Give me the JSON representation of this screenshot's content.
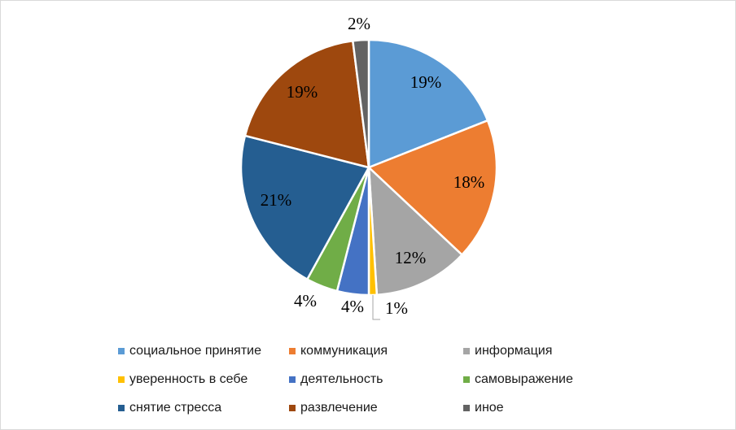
{
  "chart_data": {
    "type": "pie",
    "title": "",
    "legend_position": "bottom",
    "slices": [
      {
        "label": "социальное принятие",
        "value": 19,
        "display": "19%",
        "color": "#5b9bd5"
      },
      {
        "label": "коммуникация",
        "value": 18,
        "display": "18%",
        "color": "#ed7d31"
      },
      {
        "label": "информация",
        "value": 12,
        "display": "12%",
        "color": "#a5a5a5"
      },
      {
        "label": "уверенность в себе",
        "value": 1,
        "display": "1%",
        "color": "#ffc000"
      },
      {
        "label": "деятельность",
        "value": 4,
        "display": "4%",
        "color": "#4472c4"
      },
      {
        "label": "самовыражение",
        "value": 4,
        "display": "4%",
        "color": "#70ad47"
      },
      {
        "label": "снятие стресса",
        "value": 21,
        "display": "21%",
        "color": "#255e91"
      },
      {
        "label": "развлечение",
        "value": 19,
        "display": "19%",
        "color": "#9e480e"
      },
      {
        "label": "иное",
        "value": 2,
        "display": "2%",
        "color": "#636363"
      }
    ]
  }
}
